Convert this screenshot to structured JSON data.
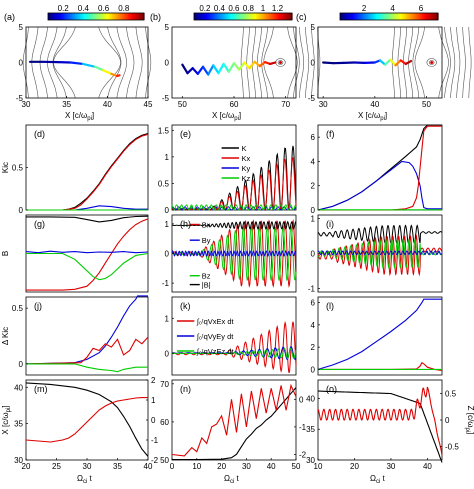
{
  "colorbars": [
    {
      "ticks": [
        "0.2",
        "0.4",
        "0.6",
        "0.8"
      ],
      "tickvals": [
        0.2,
        0.4,
        0.6,
        0.8
      ],
      "range": [
        0.05,
        1.0
      ]
    },
    {
      "ticks": [
        "0.2",
        "0.4",
        "0.6",
        "0.8",
        "1",
        "1.2"
      ],
      "tickvals": [
        0.2,
        0.4,
        0.6,
        0.8,
        1.0,
        1.2
      ],
      "range": [
        0.05,
        1.4
      ]
    },
    {
      "ticks": [
        "2",
        "4",
        "6"
      ],
      "tickvals": [
        2,
        4,
        6
      ],
      "range": [
        0.3,
        7.2
      ]
    }
  ],
  "labels": {
    "x_field": "X [c/ω",
    "pi_sub": "pi",
    "x_field_close": "]",
    "y_kic": "Kic",
    "y_b": "B",
    "y_dkic": "Δ Kic",
    "y_x": "X [c/ω",
    "y_z": "Z [c/ω",
    "omega_t": "Ω",
    "ci_sub": "ci",
    "t_suffix": " t"
  },
  "chart_data": [
    {
      "id": "a",
      "label": "(a)",
      "type": "scatter",
      "x_ticks": [
        30,
        35,
        40,
        45
      ],
      "xlim": [
        30,
        45
      ],
      "y_ticks": [
        5,
        0,
        -5
      ],
      "ylim": [
        -5,
        5
      ],
      "trajectory": {
        "x": [
          30.5,
          32,
          34,
          35.5,
          37,
          38.5,
          39.5,
          40.5,
          41.2,
          41.5
        ],
        "y": [
          0.1,
          0.1,
          0.05,
          0,
          -0.2,
          -0.6,
          -1.1,
          -1.6,
          -1.9,
          -1.8
        ],
        "k": [
          0.05,
          0.08,
          0.12,
          0.2,
          0.35,
          0.5,
          0.65,
          0.75,
          0.85,
          0.9
        ]
      }
    },
    {
      "id": "b",
      "label": "(b)",
      "type": "scatter",
      "x_ticks": [
        50,
        60,
        70
      ],
      "xlim": [
        48,
        72
      ],
      "y_ticks": [
        5,
        0,
        -5
      ],
      "ylim": [
        -5,
        5
      ],
      "trajectory": {
        "x": [
          50,
          51,
          52,
          53,
          54,
          55,
          56,
          57,
          58,
          59,
          60,
          61,
          62,
          63,
          64,
          65,
          66,
          67,
          68
        ],
        "y": [
          -0.3,
          -1.5,
          -0.8,
          -1.6,
          -0.6,
          -1.7,
          -0.4,
          -1.5,
          -0.2,
          -1.3,
          -0.1,
          -1.0,
          0,
          -0.8,
          0.1,
          -0.5,
          0.05,
          -0.2,
          0
        ],
        "k": [
          0.05,
          0.1,
          0.15,
          0.25,
          0.3,
          0.4,
          0.5,
          0.55,
          0.6,
          0.7,
          0.75,
          0.8,
          0.9,
          0.95,
          1.0,
          1.1,
          1.2,
          1.3,
          1.35
        ]
      }
    },
    {
      "id": "c",
      "label": "(c)",
      "type": "scatter",
      "x_ticks": [
        30,
        40,
        50
      ],
      "xlim": [
        29,
        53
      ],
      "y_ticks": [
        5,
        0,
        -5
      ],
      "ylim": [
        -5,
        5
      ],
      "trajectory": {
        "x": [
          30,
          32,
          34,
          36,
          38,
          40,
          41,
          42,
          43,
          44,
          45,
          46,
          47
        ],
        "y": [
          0,
          -0.1,
          -0.05,
          0,
          -0.05,
          0,
          0.3,
          -0.3,
          0.4,
          -0.4,
          0.3,
          -0.2,
          0.2
        ],
        "k": [
          0.3,
          0.4,
          0.5,
          0.7,
          1.0,
          1.5,
          2.5,
          3.5,
          4.5,
          5.5,
          6.2,
          6.8,
          7.0
        ]
      }
    },
    {
      "id": "d",
      "label": "(d)",
      "type": "line",
      "ylabel": "Kic",
      "x_range": [
        20,
        40
      ],
      "ylim": [
        0,
        1
      ],
      "y_ticks": [
        0,
        0.5
      ],
      "series": [
        {
          "color": "#000000",
          "x": [
            20,
            22,
            24,
            26,
            27,
            28,
            29,
            30,
            31,
            32,
            33,
            34,
            35,
            36,
            37,
            38,
            39,
            40
          ],
          "y": [
            0,
            0,
            0,
            0,
            0.01,
            0.03,
            0.08,
            0.14,
            0.22,
            0.31,
            0.42,
            0.52,
            0.61,
            0.7,
            0.78,
            0.84,
            0.88,
            0.9
          ]
        },
        {
          "color": "#dd0000",
          "x": [
            20,
            22,
            24,
            26,
            27,
            28,
            29,
            30,
            31,
            32,
            33,
            34,
            35,
            36,
            37,
            38,
            39,
            40
          ],
          "y": [
            0,
            0,
            0,
            0,
            0.01,
            0.02,
            0.06,
            0.13,
            0.21,
            0.3,
            0.41,
            0.51,
            0.6,
            0.69,
            0.77,
            0.83,
            0.87,
            0.89
          ]
        },
        {
          "color": "#0000dd",
          "x": [
            20,
            28,
            30,
            32,
            34,
            36,
            38,
            40
          ],
          "y": [
            0,
            0,
            0.02,
            0.05,
            0.04,
            0.02,
            0.01,
            0.01
          ]
        },
        {
          "color": "#00cc00",
          "x": [
            20,
            40
          ],
          "y": [
            0,
            0
          ]
        }
      ]
    },
    {
      "id": "e",
      "label": "(e)",
      "type": "line",
      "x_range": [
        0,
        50
      ],
      "ylim": [
        0,
        1.6
      ],
      "y_ticks": [
        0,
        0.5,
        1,
        1.5
      ],
      "legend": [
        "K",
        "Kx",
        "Ky",
        "Kz"
      ],
      "legend_colors": [
        "#000000",
        "#dd0000",
        "#0000dd",
        "#00cc00"
      ]
    },
    {
      "id": "f",
      "label": "(f)",
      "type": "line",
      "x_range": [
        10,
        44
      ],
      "ylim": [
        0,
        7
      ],
      "y_ticks": [
        0,
        2,
        4,
        6
      ],
      "series": [
        {
          "color": "#000000",
          "x": [
            10,
            14,
            18,
            22,
            26,
            30,
            34,
            37,
            38,
            39,
            40,
            42,
            44
          ],
          "y": [
            0,
            0.3,
            0.8,
            1.5,
            2.4,
            3.4,
            4.4,
            5.2,
            5.8,
            6.7,
            7,
            7,
            7
          ]
        },
        {
          "color": "#0000dd",
          "x": [
            10,
            14,
            18,
            22,
            26,
            30,
            33,
            35,
            36,
            37,
            38,
            38.5,
            39,
            40,
            42,
            44
          ],
          "y": [
            0,
            0.3,
            0.8,
            1.5,
            2.4,
            3.3,
            4.0,
            3.9,
            3.6,
            3.0,
            2.0,
            1.0,
            0.2,
            0.1,
            0.1,
            0.1
          ]
        },
        {
          "color": "#dd0000",
          "x": [
            10,
            30,
            34,
            36,
            37,
            37.5,
            38,
            38.5,
            39,
            40,
            42,
            44
          ],
          "y": [
            0,
            0,
            0.1,
            0.3,
            1.0,
            2.0,
            3.5,
            5.0,
            6.5,
            6.9,
            6.9,
            6.9
          ]
        },
        {
          "color": "#00cc00",
          "x": [
            10,
            44
          ],
          "y": [
            0.02,
            0.02
          ]
        }
      ]
    },
    {
      "id": "g",
      "label": "(g)",
      "type": "line",
      "ylabel": "B",
      "x_range": [
        20,
        40
      ],
      "ylim": [
        -1,
        1
      ],
      "y_ticks": [],
      "series": [
        {
          "color": "#000000",
          "x": [
            20,
            24,
            28,
            30,
            32,
            34,
            36,
            38,
            40
          ],
          "y": [
            0.95,
            0.95,
            0.94,
            0.88,
            0.82,
            0.86,
            0.93,
            0.96,
            0.97
          ]
        },
        {
          "color": "#dd0000",
          "x": [
            20,
            26,
            28,
            30,
            31,
            32,
            33,
            34,
            35,
            36,
            37,
            38,
            39,
            40
          ],
          "y": [
            -0.95,
            -0.95,
            -0.93,
            -0.85,
            -0.7,
            -0.5,
            -0.25,
            0,
            0.25,
            0.45,
            0.62,
            0.75,
            0.84,
            0.9
          ]
        },
        {
          "color": "#0000dd",
          "x": [
            20,
            22,
            24,
            26,
            28,
            30,
            32,
            34,
            36,
            38,
            40
          ],
          "y": [
            0.05,
            0.02,
            0.06,
            0.03,
            0.05,
            0.02,
            0.04,
            0.03,
            0.05,
            0.02,
            0.04
          ]
        },
        {
          "color": "#00cc00",
          "x": [
            20,
            26,
            28,
            30,
            31,
            32,
            33,
            34,
            35,
            36,
            38,
            40
          ],
          "y": [
            0,
            0,
            -0.15,
            -0.45,
            -0.6,
            -0.68,
            -0.65,
            -0.55,
            -0.4,
            -0.25,
            -0.05,
            0
          ]
        }
      ]
    },
    {
      "id": "h",
      "label": "(h)",
      "type": "line",
      "x_range": [
        0,
        50
      ],
      "ylim": [
        -1.3,
        1.3
      ],
      "y_ticks": [
        1,
        0,
        -1
      ],
      "legend": [
        "Bx",
        "By",
        "Bz",
        "|B|"
      ],
      "legend_colors": [
        "#dd0000",
        "#0000dd",
        "#00cc00",
        "#000000"
      ]
    },
    {
      "id": "i",
      "label": "(i)",
      "type": "line",
      "x_range": [
        10,
        44
      ],
      "ylim": [
        -1.1,
        1.1
      ],
      "y_ticks": [
        1,
        0,
        -1
      ]
    },
    {
      "id": "j",
      "label": "(j)",
      "type": "line",
      "ylabel": "Δ Kic",
      "x_range": [
        20,
        40
      ],
      "ylim": [
        -0.1,
        0.6
      ],
      "y_ticks": [
        0,
        0.5
      ],
      "series": [
        {
          "color": "#0000dd",
          "x": [
            20,
            28,
            30,
            32,
            33,
            34,
            35,
            36,
            37,
            38,
            38.3,
            40
          ],
          "y": [
            0,
            0.01,
            0.04,
            0.1,
            0.16,
            0.24,
            0.33,
            0.43,
            0.52,
            0.58,
            0.61,
            0.61
          ]
        },
        {
          "color": "#dd0000",
          "x": [
            20,
            29,
            30,
            31,
            32,
            33,
            34,
            35,
            36,
            37,
            38,
            39,
            40
          ],
          "y": [
            0,
            0.01,
            0.06,
            0.14,
            0.12,
            0.18,
            0.15,
            0.22,
            0.08,
            0.12,
            0.22,
            0.18,
            0.24
          ]
        },
        {
          "color": "#00cc00",
          "x": [
            20,
            28,
            30,
            32,
            34,
            35,
            36,
            38,
            40
          ],
          "y": [
            0,
            0,
            -0.03,
            -0.05,
            -0.06,
            -0.07,
            -0.05,
            -0.03,
            -0.03
          ]
        }
      ]
    },
    {
      "id": "k",
      "label": "(k)",
      "type": "line",
      "x_range": [
        0,
        50
      ],
      "ylim": [
        -0.6,
        1.6
      ],
      "y_ticks": [
        1,
        0
      ],
      "legend": [
        "∫₀ᵗqVxEx dt",
        "∫₀ᵗqVyEy dt",
        "∫₀ᵗqVzEz dt"
      ],
      "legend_colors": [
        "#dd0000",
        "#0000dd",
        "#00cc00"
      ]
    },
    {
      "id": "l",
      "label": "(l)",
      "type": "line",
      "x_range": [
        10,
        44
      ],
      "ylim": [
        -0.5,
        6.5
      ],
      "y_ticks": [
        0,
        2,
        4,
        6
      ],
      "series": [
        {
          "color": "#0000dd",
          "x": [
            10,
            14,
            18,
            22,
            26,
            30,
            34,
            37,
            38.5,
            39,
            41,
            44
          ],
          "y": [
            0,
            0.4,
            0.9,
            1.6,
            2.5,
            3.4,
            4.4,
            5.3,
            6.0,
            6.3,
            6.3,
            6.3
          ]
        },
        {
          "color": "#dd0000",
          "x": [
            10,
            30,
            34,
            37,
            38,
            38.5,
            39,
            40,
            42,
            44
          ],
          "y": [
            0,
            0,
            0.02,
            0.05,
            0.3,
            0.6,
            0.5,
            0.2,
            0,
            -0.1
          ]
        },
        {
          "color": "#00cc00",
          "x": [
            10,
            44
          ],
          "y": [
            0,
            0
          ]
        }
      ]
    },
    {
      "id": "m",
      "label": "(m)",
      "type": "line",
      "ylabel": "X [c/ω_pi]",
      "xlabel": "Ω_ci t",
      "x_ticks": [
        20,
        25,
        30,
        35,
        40
      ],
      "xlim": [
        20,
        40
      ],
      "y_ticks": [
        30,
        35,
        40
      ],
      "ylim": [
        30,
        41
      ],
      "y2_ticks": [
        2,
        1,
        0,
        -1,
        -2
      ],
      "y2lim": [
        -2,
        2
      ],
      "series": [
        {
          "color": "#000000",
          "axis": "left",
          "x": [
            20,
            24,
            28,
            30,
            32,
            34,
            35,
            36,
            37,
            38,
            39,
            40
          ],
          "y": [
            40.6,
            40.4,
            40.0,
            39.6,
            39.0,
            38.0,
            37.2,
            36.0,
            34.6,
            33.0,
            31.5,
            30.5
          ]
        },
        {
          "color": "#dd0000",
          "axis": "right",
          "x": [
            20,
            22,
            24,
            26,
            27,
            28,
            29,
            30,
            31,
            32,
            33,
            34,
            35,
            36,
            37,
            38,
            39,
            40
          ],
          "y": [
            -1.0,
            -1.05,
            -1.1,
            -1.0,
            -0.9,
            -0.7,
            -0.4,
            -0.1,
            0.2,
            0.5,
            0.7,
            0.85,
            0.95,
            1.0,
            1.05,
            1.1,
            1.12,
            1.12
          ]
        }
      ]
    },
    {
      "id": "n",
      "label": "(n)",
      "type": "line",
      "xlabel": "Ω_ci t",
      "x_ticks": [
        0,
        10,
        20,
        30,
        40,
        50
      ],
      "xlim": [
        0,
        50
      ],
      "y_ticks": [
        50,
        60,
        70
      ],
      "ylim": [
        50,
        71
      ],
      "y2_ticks": [
        0,
        -1,
        -2
      ],
      "y2lim": [
        -2.2,
        0.7
      ],
      "series": [
        {
          "color": "#000000",
          "axis": "left",
          "x": [
            0,
            10,
            20,
            24,
            26,
            28,
            30,
            32,
            34,
            36,
            38,
            40,
            42,
            44,
            46,
            48,
            50
          ],
          "y": [
            50.1,
            50.1,
            50.2,
            50.6,
            51.5,
            53.5,
            55.5,
            56.8,
            58.3,
            59.2,
            60.5,
            61.5,
            63.0,
            64.5,
            66.0,
            67.5,
            69.0
          ]
        },
        {
          "color": "#dd0000",
          "axis": "right",
          "x": [
            0,
            5,
            8,
            10,
            12,
            14,
            16,
            18,
            20,
            22,
            24,
            26,
            28,
            30,
            32,
            34,
            36,
            38,
            40,
            42,
            44,
            46,
            48,
            50
          ],
          "y": [
            -2.0,
            -2.05,
            -1.75,
            -1.9,
            -1.4,
            -1.6,
            -1.0,
            -0.9,
            -0.6,
            -1.3,
            0.0,
            -1.2,
            0.2,
            -1.0,
            0.3,
            -0.7,
            0.4,
            -0.5,
            0.4,
            -0.4,
            0.5,
            -0.4,
            0.5,
            0.1
          ]
        }
      ]
    },
    {
      "id": "o",
      "label": "(o)",
      "type": "line",
      "xlabel": "Ω_ci t",
      "ylabel2": "Z [c/ω_pi]",
      "x_ticks": [
        10,
        20,
        30,
        40
      ],
      "xlim": [
        10,
        44
      ],
      "y_ticks": [
        30,
        35,
        40
      ],
      "ylim": [
        30,
        43
      ],
      "y2_ticks": [
        0.5,
        0,
        -0.5
      ],
      "y2lim": [
        -0.75,
        0.75
      ]
    }
  ]
}
